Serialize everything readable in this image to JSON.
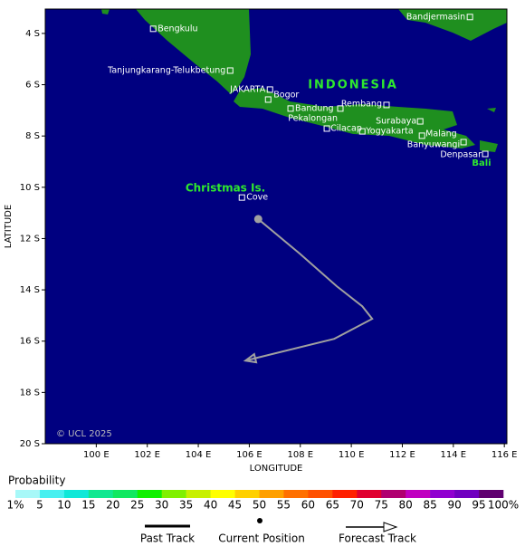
{
  "map": {
    "xlim": [
      98,
      116.1
    ],
    "ylim": [
      -20,
      -3.05
    ],
    "xticks": [
      {
        "value": 100,
        "label": "100 E"
      },
      {
        "value": 102,
        "label": "102 E"
      },
      {
        "value": 104,
        "label": "104 E"
      },
      {
        "value": 106,
        "label": "106 E"
      },
      {
        "value": 108,
        "label": "108 E"
      },
      {
        "value": 110,
        "label": "110 E"
      },
      {
        "value": 112,
        "label": "112 E"
      },
      {
        "value": 114,
        "label": "114 E"
      },
      {
        "value": 116,
        "label": "116 E"
      }
    ],
    "yticks": [
      {
        "value": -4,
        "label": "4 S"
      },
      {
        "value": -6,
        "label": "6 S"
      },
      {
        "value": -8,
        "label": "8 S"
      },
      {
        "value": -10,
        "label": "10 S"
      },
      {
        "value": -12,
        "label": "12 S"
      },
      {
        "value": -14,
        "label": "14 S"
      },
      {
        "value": -16,
        "label": "16 S"
      },
      {
        "value": -18,
        "label": "18 S"
      },
      {
        "value": -20,
        "label": "20 S"
      }
    ],
    "xlabel": "LONGITUDE",
    "ylabel": "LATITUDE",
    "ocean_color": "#000080",
    "land_color": "#1f8f1f",
    "country_label": "INDONESIA",
    "island_labels": [
      "Christmas Is.",
      "Bali"
    ],
    "copyright": "© UCL 2025",
    "cities": [
      {
        "name": "Bengkulu",
        "lon": 102.23,
        "lat": -3.82
      },
      {
        "name": "Bandjermasin",
        "lon": 114.65,
        "lat": -3.36
      },
      {
        "name": "Tanjungkarang-Telukbetung",
        "lon": 105.25,
        "lat": -5.45
      },
      {
        "name": "JAKARTA",
        "lon": 106.81,
        "lat": -6.19
      },
      {
        "name": "Bogor",
        "lon": 106.74,
        "lat": -6.58
      },
      {
        "name": "Bandung",
        "lon": 107.62,
        "lat": -6.93
      },
      {
        "name": "Pekalongan",
        "lon": 109.57,
        "lat": -6.93
      },
      {
        "name": "Rembang",
        "lon": 111.38,
        "lat": -6.79
      },
      {
        "name": "Surabaya",
        "lon": 112.7,
        "lat": -7.43
      },
      {
        "name": "Cilacap",
        "lon": 109.04,
        "lat": -7.71
      },
      {
        "name": "Yogyakarta",
        "lon": 110.43,
        "lat": -7.82
      },
      {
        "name": "Malang",
        "lon": 112.77,
        "lat": -7.99
      },
      {
        "name": "Banyuwangi",
        "lon": 114.4,
        "lat": -8.24
      },
      {
        "name": "Denpasar",
        "lon": 115.25,
        "lat": -8.7
      },
      {
        "name": "Cove",
        "lon": 105.71,
        "lat": -10.4
      }
    ],
    "track": {
      "lon": [
        106.35,
        107.98,
        109.43,
        110.43,
        110.82,
        109.33,
        105.85
      ],
      "lat": [
        -11.24,
        -12.59,
        -13.86,
        -14.64,
        -15.13,
        -15.91,
        -16.76
      ],
      "color": "#a0a0a0"
    },
    "probability_scale": {
      "title": "Probability",
      "ticks": [
        {
          "value": 1,
          "label": "1%"
        },
        5,
        10,
        15,
        20,
        25,
        30,
        35,
        40,
        45,
        50,
        55,
        60,
        65,
        70,
        75,
        80,
        85,
        90,
        95,
        {
          "value": 100,
          "label": "100%"
        }
      ],
      "colors": [
        "#a8f8f8",
        "#48f0f0",
        "#10e8d8",
        "#10e890",
        "#10e860",
        "#10f000",
        "#80f000",
        "#c8f000",
        "#ffff00",
        "#ffd000",
        "#ffa000",
        "#ff7000",
        "#ff5000",
        "#ff2000",
        "#e00030",
        "#b00070",
        "#c000c0",
        "#9000d0",
        "#7000c0",
        "#600070"
      ]
    },
    "legend": [
      "Past Track",
      "Current Position",
      "Forecast Track"
    ]
  }
}
